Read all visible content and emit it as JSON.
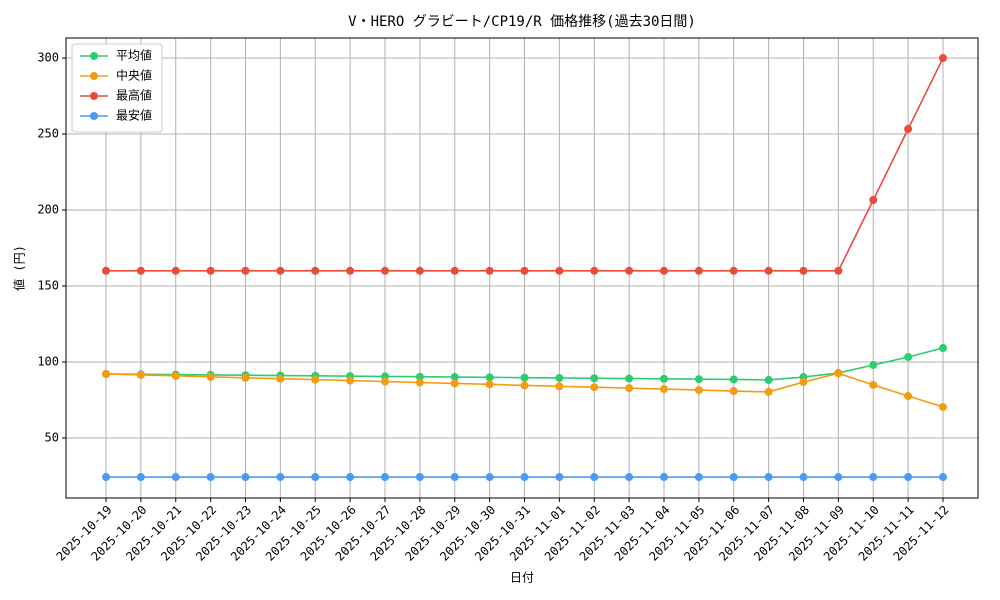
{
  "chart_data": {
    "type": "line",
    "title": "V・HERO グラビート/CP19/R 価格推移(過去30日間)",
    "x_label": "日付",
    "y_label": "値 (円)",
    "categories": [
      "2025-10-19",
      "2025-10-20",
      "2025-10-21",
      "2025-10-22",
      "2025-10-23",
      "2025-10-24",
      "2025-10-25",
      "2025-10-26",
      "2025-10-27",
      "2025-10-28",
      "2025-10-29",
      "2025-10-30",
      "2025-10-31",
      "2025-11-01",
      "2025-11-02",
      "2025-11-03",
      "2025-11-04",
      "2025-11-05",
      "2025-11-06",
      "2025-11-07",
      "2025-11-08",
      "2025-11-09",
      "2025-11-10",
      "2025-11-11",
      "2025-11-12"
    ],
    "series": [
      {
        "name": "平均値",
        "color": "#2ecc71",
        "values": [
          92.1,
          91.9,
          91.7,
          91.5,
          91.3,
          91.1,
          90.9,
          90.7,
          90.5,
          90.3,
          90.1,
          89.9,
          89.7,
          89.5,
          89.3,
          89.1,
          88.9,
          88.7,
          88.5,
          88.2,
          90.1,
          92.8,
          98.0,
          103.3,
          109.2
        ]
      },
      {
        "name": "中央値",
        "color": "#f39c12",
        "values": [
          92.1,
          91.5,
          90.9,
          90.2,
          89.6,
          89.0,
          88.4,
          87.8,
          87.1,
          86.5,
          85.9,
          85.3,
          84.6,
          84.0,
          83.4,
          82.8,
          82.2,
          81.5,
          80.9,
          80.3,
          86.8,
          92.5,
          84.9,
          77.6,
          70.4
        ]
      },
      {
        "name": "最高値",
        "color": "#e74c3c",
        "values": [
          160,
          160,
          160,
          160,
          160,
          160,
          160,
          160,
          160,
          160,
          160,
          160,
          160,
          160,
          160,
          160,
          160,
          160,
          160,
          160,
          160,
          160,
          206.6,
          253.3,
          300
        ]
      },
      {
        "name": "最安値",
        "color": "#4a9af5",
        "values": [
          24.3,
          24.3,
          24.3,
          24.3,
          24.3,
          24.3,
          24.3,
          24.3,
          24.3,
          24.3,
          24.3,
          24.3,
          24.3,
          24.3,
          24.3,
          24.3,
          24.3,
          24.3,
          24.3,
          24.3,
          24.3,
          24.3,
          24.3,
          24.3,
          24.3
        ]
      }
    ],
    "ylim": [
      10.5,
      313.2
    ],
    "yticks": [
      50,
      100,
      150,
      200,
      250,
      300
    ],
    "grid": true,
    "legend": "upper-left"
  }
}
